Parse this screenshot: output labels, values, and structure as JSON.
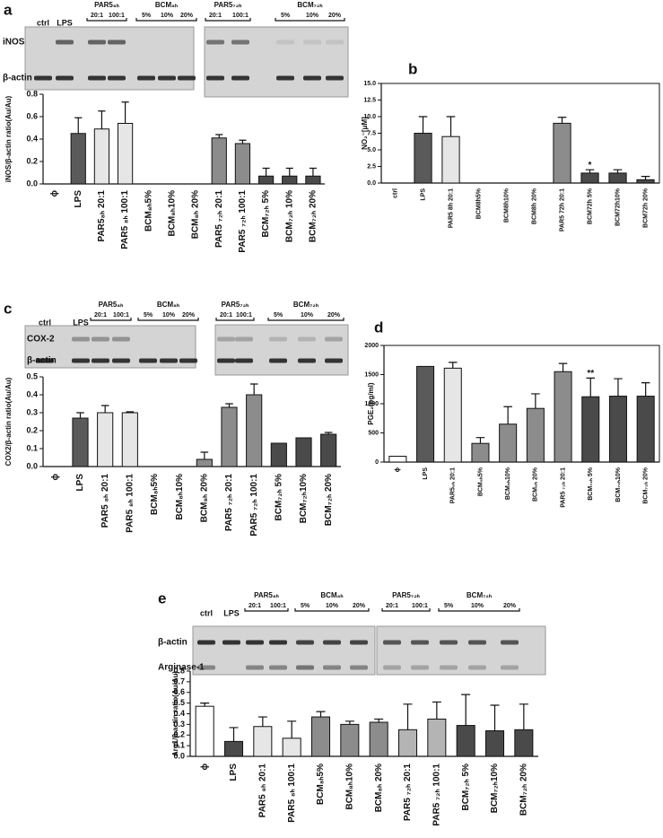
{
  "chart_data": [
    {
      "type": "bar",
      "panel": "a",
      "ylabel": "iNOS/β-actin ratio(Au/Au)",
      "categories": [
        "ϕ",
        "LPS",
        "PAR5₈ₕ 20:1",
        "PAR5 ₈ₕ 100:1",
        "BCM₈ₕ5%",
        "BCM₈ₕ10%",
        "BCM₈ₕ 20%",
        "PAR5 ₇₂ₕ 20:1",
        "PAR5 ₇₂ₕ 100:1",
        "BCM₇₂ₕ 5%",
        "BCM₇₂ₕ 10%",
        "BCM₇₂ₕ 20%"
      ],
      "values": [
        null,
        0.45,
        0.49,
        0.54,
        null,
        null,
        null,
        0.41,
        0.36,
        0.07,
        0.07,
        0.07
      ],
      "errors": [
        null,
        0.14,
        0.16,
        0.19,
        null,
        null,
        null,
        0.03,
        0.03,
        0.07,
        0.07,
        0.07
      ],
      "colors": [
        null,
        "#5a5a5a",
        "#e6e6e6",
        "#e6e6e6",
        null,
        null,
        null,
        "#8c8c8c",
        "#8c8c8c",
        "#4a4a4a",
        "#4a4a4a",
        "#4a4a4a"
      ],
      "ylim": [
        0,
        0.8
      ],
      "yticks": [
        {
          "value": 0,
          "label": "0.0"
        },
        0.2,
        0.4,
        0.6,
        0.8
      ],
      "frame": false,
      "blot": {
        "rows": [
          "iNOS",
          "β-actin"
        ],
        "lanes": [
          "ctrl",
          "LPS"
        ],
        "groups": [
          {
            "name": "PAR5₈ₕ",
            "lanes": [
              "20:1",
              "100:1"
            ]
          },
          {
            "name": "BCM₈ₕ",
            "lanes": [
              "5%",
              "10%",
              "20%"
            ]
          },
          {
            "name": "PAR5₇₂ₕ",
            "lanes": [
              "20:1",
              "100:1"
            ]
          },
          {
            "name": "BCM₇₂ₕ",
            "lanes": [
              "5%",
              "10%",
              "20%"
            ]
          }
        ]
      }
    },
    {
      "type": "bar",
      "panel": "b",
      "ylabel": "NO₂⁻[μM]",
      "categories": [
        "ctrl",
        "LPS",
        "PAR5 8h 20:1",
        "BCM8h5%",
        "BCM8h10%",
        "BCM8h 20%",
        "PAR5 72h 20:1",
        "BCM72h 5%",
        "BCM72h10%",
        "BCM72h 20%"
      ],
      "values": [
        null,
        7.5,
        7.0,
        null,
        null,
        null,
        9.0,
        1.5,
        1.5,
        0.5
      ],
      "errors": [
        null,
        2.5,
        3.0,
        null,
        null,
        null,
        0.9,
        0.5,
        0.5,
        0.5
      ],
      "colors": [
        null,
        "#5a5a5a",
        "#e6e6e6",
        null,
        null,
        null,
        "#8c8c8c",
        "#4a4a4a",
        "#4a4a4a",
        "#4a4a4a"
      ],
      "significance": [
        null,
        null,
        null,
        null,
        null,
        null,
        null,
        "*",
        null,
        null
      ],
      "ylim": [
        0,
        15
      ],
      "yticks": [
        {
          "value": 0,
          "label": "0.0"
        },
        {
          "value": 2.5,
          "label": "2.5"
        },
        {
          "value": 5,
          "label": "5.0"
        },
        {
          "value": 7.5,
          "label": "7.5"
        },
        {
          "value": 10,
          "label": "10.0"
        },
        {
          "value": 12.5,
          "label": "12.5"
        },
        {
          "value": 15,
          "label": "15.0"
        }
      ],
      "frame": true
    },
    {
      "type": "bar",
      "panel": "c",
      "ylabel": "COX2/β-actin ratio(Au/Au)",
      "categories": [
        "ϕ",
        "LPS",
        "PAR5 ₈ₕ 20:1",
        "PAR5 ₈ₕ 100:1",
        "BCM₈ₕ5%",
        "BCM₈ₕ10%",
        "BCM₈ₕ 20%",
        "PAR5 ₇₂ₕ 20:1",
        "PAR5 ₇₂ₕ 100:1",
        "BCM₇₂ₕ 5%",
        "BCM₇₂ₕ10%",
        "BCM₇₂ₕ 20%"
      ],
      "values": [
        null,
        0.27,
        0.3,
        0.3,
        null,
        null,
        0.04,
        0.33,
        0.4,
        0.13,
        0.16,
        0.18
      ],
      "errors": [
        null,
        0.03,
        0.04,
        0.005,
        null,
        null,
        0.04,
        0.02,
        0.06,
        null,
        null,
        0.01
      ],
      "colors": [
        null,
        "#5a5a5a",
        "#e6e6e6",
        "#e6e6e6",
        null,
        null,
        "#8c8c8c",
        "#8c8c8c",
        "#8c8c8c",
        "#4a4a4a",
        "#4a4a4a",
        "#4a4a4a"
      ],
      "ylim": [
        0,
        0.5
      ],
      "yticks": [
        {
          "value": 0,
          "label": "0.0"
        },
        0.1,
        0.2,
        0.3,
        0.4,
        0.5
      ],
      "frame": false,
      "blot": {
        "rows": [
          "COX-2",
          "β-actin"
        ],
        "lanes": [
          "ctrl",
          "LPS"
        ],
        "groups": [
          {
            "name": "PAR5₈ₕ",
            "lanes": [
              "20:1",
              "100:1"
            ]
          },
          {
            "name": "BCM₈ₕ",
            "lanes": [
              "5%",
              "10%",
              "20%"
            ]
          },
          {
            "name": "PAR5₇₂ₕ",
            "lanes": [
              "20:1",
              "100:1"
            ]
          },
          {
            "name": "BCM₇₂ₕ",
            "lanes": [
              "5%",
              "10%",
              "20%"
            ]
          }
        ]
      }
    },
    {
      "type": "bar",
      "panel": "d",
      "ylabel": "PGE₂(pg/ml)",
      "categories": [
        "ϕ",
        "LPS",
        "PAR5₈ₕ 20:1",
        "BCM₈ₕ5%",
        "BCM₈ₕ10%",
        "BCM₈ₕ 20%",
        "PAR5 ₇₂ₕ 20:1",
        "BCM₇₂ₕ 5%",
        "BCM₇₂ₕ10%",
        "BCM₇₂ₕ 20%"
      ],
      "values": [
        100,
        1640,
        1610,
        320,
        650,
        920,
        1550,
        1120,
        1130,
        1130
      ],
      "errors": [
        null,
        null,
        100,
        100,
        300,
        250,
        140,
        320,
        300,
        230
      ],
      "colors": [
        "#ffffff",
        "#5a5a5a",
        "#e6e6e6",
        "#8c8c8c",
        "#8c8c8c",
        "#8c8c8c",
        "#8c8c8c",
        "#4a4a4a",
        "#4a4a4a",
        "#4a4a4a"
      ],
      "significance": [
        null,
        null,
        null,
        null,
        null,
        null,
        null,
        "**",
        null,
        null
      ],
      "ylim": [
        0,
        2000
      ],
      "yticks": [
        0,
        500,
        1000,
        1500,
        2000
      ],
      "frame": true
    },
    {
      "type": "bar",
      "panel": "e",
      "ylabel": "Arg1/β-actin ratio(Au/Au)",
      "categories": [
        "ϕ",
        "LPS",
        "PAR5 ₈ₕ 20:1",
        "PAR5 ₈ₕ 100:1",
        "BCM₈ₕ5%",
        "BCM₈ₕ10%",
        "BCM₈ₕ 20%",
        "PAR5 ₇₂ₕ 20:1",
        "PAR5 ₇₂ₕ 100:1",
        "BCM₇₂ₕ 5%",
        "BCM₇₂ₕ10%",
        "BCM₇₂ₕ 20%"
      ],
      "values": [
        0.47,
        0.14,
        0.28,
        0.17,
        0.37,
        0.3,
        0.32,
        0.25,
        0.35,
        0.29,
        0.24,
        0.25
      ],
      "errors": [
        0.03,
        0.13,
        0.09,
        0.16,
        0.05,
        0.03,
        0.03,
        0.24,
        0.16,
        0.29,
        0.24,
        0.24
      ],
      "colors": [
        "#ffffff",
        "#4a4a4a",
        "#e6e6e6",
        "#e6e6e6",
        "#8c8c8c",
        "#8c8c8c",
        "#8c8c8c",
        "#b4b4b4",
        "#b4b4b4",
        "#4a4a4a",
        "#4a4a4a",
        "#4a4a4a"
      ],
      "ylim": [
        0,
        0.8
      ],
      "yticks": [
        {
          "value": 0,
          "label": "0.0"
        },
        0.1,
        0.2,
        0.3,
        0.4,
        0.5,
        0.6,
        0.7,
        0.8
      ],
      "frame": false,
      "blot": {
        "rows": [
          "β-actin",
          "Arginase-1"
        ],
        "lanes": [
          "ctrl",
          "LPS"
        ],
        "groups": [
          {
            "name": "PAR5₈ₕ",
            "lanes": [
              "20:1",
              "100:1"
            ]
          },
          {
            "name": "BCM₈ₕ",
            "lanes": [
              "5%",
              "10%",
              "20%"
            ]
          },
          {
            "name": "PAR5₇₂ₕ",
            "lanes": [
              "20:1",
              "100:1"
            ]
          },
          {
            "name": "BCM₇₂ₕ",
            "lanes": [
              "5%",
              "10%",
              "20%"
            ]
          }
        ]
      }
    }
  ]
}
